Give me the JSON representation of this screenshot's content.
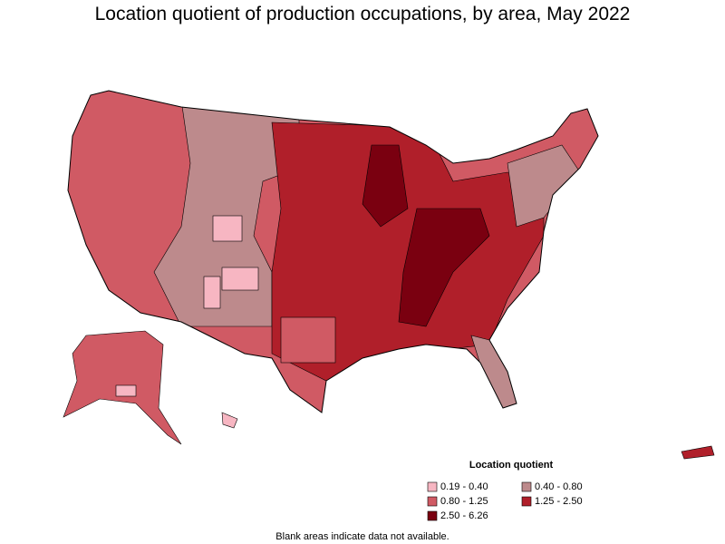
{
  "title": "Location quotient of production occupations, by area, May 2022",
  "legend": {
    "title": "Location quotient",
    "items": [
      {
        "label": "0.19 - 0.40",
        "color": "#f7b6c2"
      },
      {
        "label": "0.40 - 0.80",
        "color": "#bd8a8c"
      },
      {
        "label": "0.80 - 1.25",
        "color": "#d05a64"
      },
      {
        "label": "1.25 - 2.50",
        "color": "#b01f2a"
      },
      {
        "label": "2.50 - 6.26",
        "color": "#7a0010"
      }
    ]
  },
  "note": "Blank areas indicate data not available."
}
